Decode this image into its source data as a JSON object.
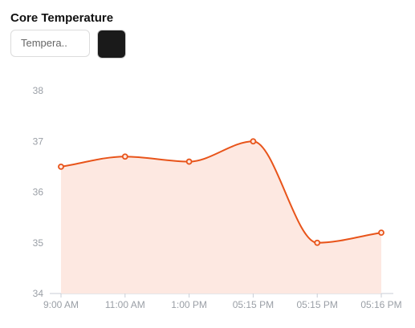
{
  "header": {
    "title": "Core Temperature",
    "input_placeholder": "Tempera..",
    "swatch_color": "#1a1a1a"
  },
  "chart_data": {
    "type": "area",
    "categories": [
      "9:00 AM",
      "11:00 AM",
      "1:00 PM",
      "05:15 PM",
      "05:15 PM",
      "05:16 PM"
    ],
    "values": [
      36.5,
      36.7,
      36.6,
      37.0,
      35.0,
      35.2
    ],
    "ylim": [
      34,
      38
    ],
    "yticks": [
      34,
      35,
      36,
      37,
      38
    ],
    "grid": false,
    "line_color": "#e8541a",
    "fill_color": "#fde8e1"
  }
}
